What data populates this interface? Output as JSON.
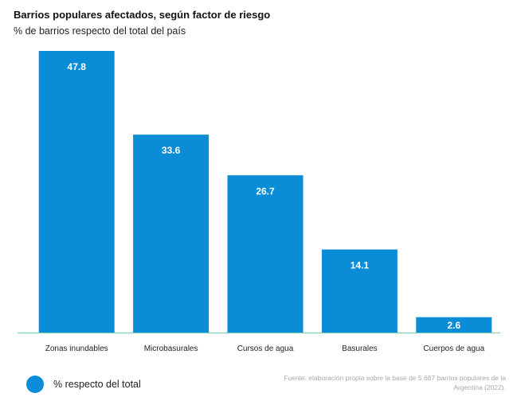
{
  "chart_data": {
    "type": "bar",
    "title": "Barrios populares afectados, según factor de riesgo",
    "subtitle": "% de barrios respecto del total del país",
    "categories": [
      "Zonas inundables",
      "Microbasurales",
      "Cursos de agua",
      "Basurales",
      "Cuerpos de agua"
    ],
    "series": [
      {
        "name": "% respecto del total",
        "values": [
          47.8,
          33.6,
          26.7,
          14.1,
          2.6
        ],
        "labels": [
          "47.8",
          "33.6",
          "26.7",
          "14.1",
          "2.6"
        ]
      }
    ],
    "ylim": [
      0,
      47.8
    ],
    "grid": false,
    "legend_position": "bottom-left",
    "colors": {
      "bar": "#0a8dd6",
      "baseline": "#7fd1b6",
      "value_label": "#ffffff"
    }
  },
  "source_note": "Fuente: elaboración propia sobre la base de 5.687 barrios populares de la Argentina (2022)."
}
